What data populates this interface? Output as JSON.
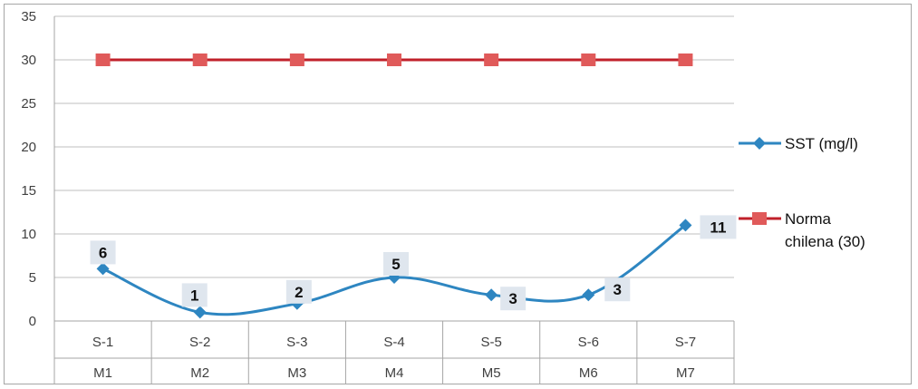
{
  "chart_data": {
    "type": "line",
    "categories": [
      [
        "S-1",
        "M1"
      ],
      [
        "S-2",
        "M2"
      ],
      [
        "S-3",
        "M3"
      ],
      [
        "S-4",
        "M4"
      ],
      [
        "S-5",
        "M5"
      ],
      [
        "S-6",
        "M6"
      ],
      [
        "S-7",
        "M7"
      ]
    ],
    "ylim": [
      0,
      35
    ],
    "yticks": [
      "0",
      "5",
      "10",
      "15",
      "20",
      "25",
      "30",
      "35"
    ],
    "grid": true,
    "legend_position": "right",
    "series": [
      {
        "name": "SST (mg/l)",
        "values": [
          6,
          1,
          2,
          5,
          3,
          3,
          11
        ],
        "data_labels": [
          "6",
          "1",
          "2",
          "5",
          "3",
          "3",
          "11"
        ],
        "color": "#2e86c1",
        "marker": "diamond"
      },
      {
        "name": "Norma chilena (30)",
        "name_lines": [
          "Norma",
          "chilena (30)"
        ],
        "values": [
          30,
          30,
          30,
          30,
          30,
          30,
          30
        ],
        "line_color": "#c0202a",
        "marker_color": "#e05a5a",
        "marker": "square"
      }
    ]
  }
}
